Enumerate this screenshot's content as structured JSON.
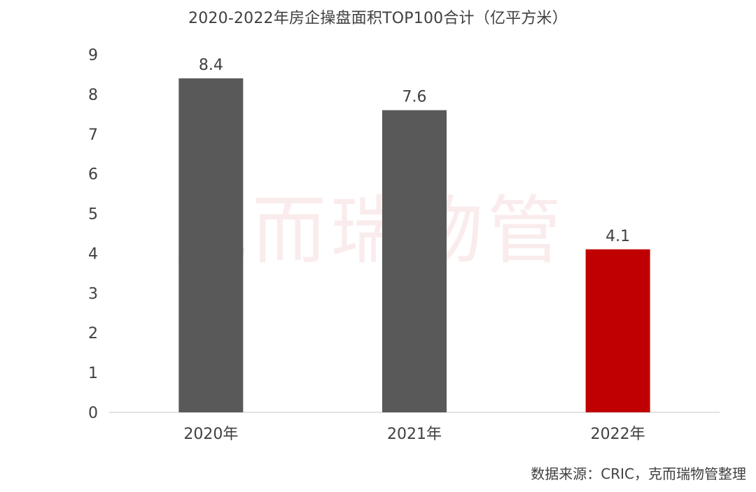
{
  "chart_data": {
    "type": "bar",
    "title": "2020-2022年房企操盘面积TOP100合计（亿平方米）",
    "categories": [
      "2020年",
      "2021年",
      "2022年"
    ],
    "values": [
      8.4,
      7.6,
      4.1
    ],
    "data_labels": [
      "8.4",
      "7.6",
      "4.1"
    ],
    "bar_colors": [
      "#595959",
      "#595959",
      "#c00000"
    ],
    "ylim": [
      0,
      9
    ],
    "yticks": [
      0,
      1,
      2,
      3,
      4,
      5,
      6,
      7,
      8,
      9
    ],
    "ytick_labels": [
      "0",
      "1",
      "2",
      "3",
      "4",
      "5",
      "6",
      "7",
      "8",
      "9"
    ],
    "xlabel": "",
    "ylabel": "",
    "grid": false,
    "legend": "none"
  },
  "source": "数据来源：CRIC，克而瑞物管整理",
  "watermark": "克而瑞物管"
}
